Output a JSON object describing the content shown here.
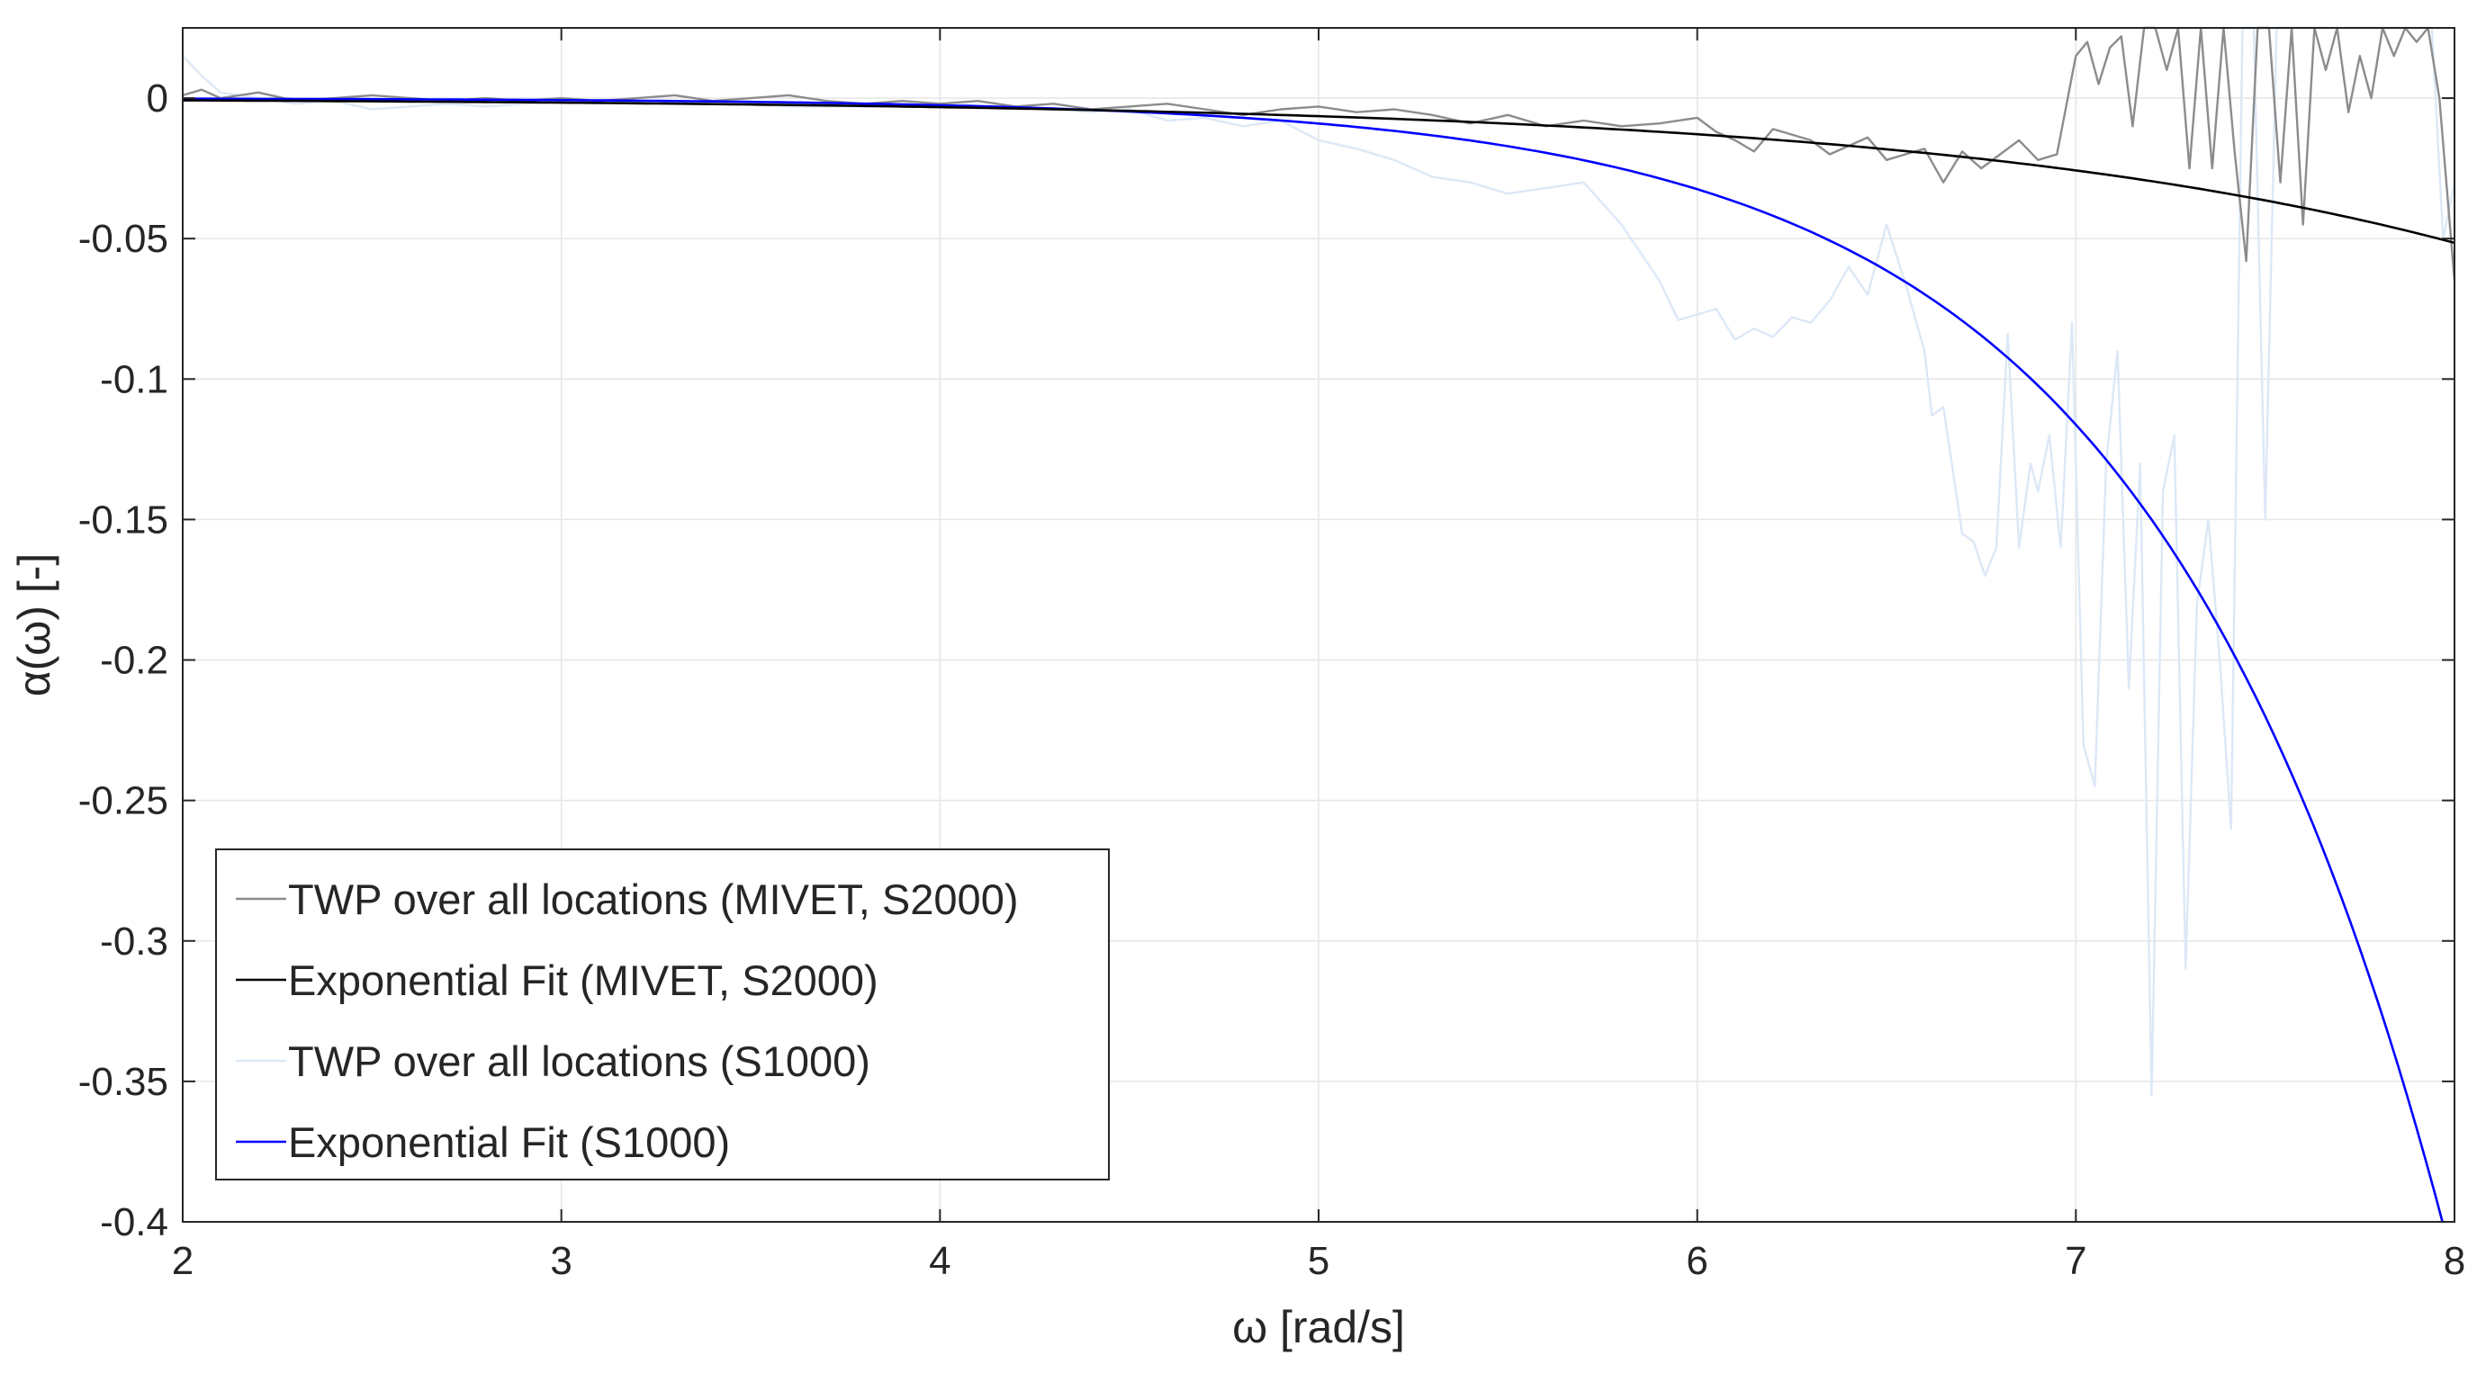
{
  "chart_data": {
    "type": "line",
    "title": "",
    "xlabel": "ω [rad/s]",
    "ylabel": "α(ω) [-]",
    "xlim": [
      2,
      8
    ],
    "ylim": [
      -0.4,
      0.025
    ],
    "grid": true,
    "legend_position": "lower-left",
    "x_ticks": [
      2,
      3,
      4,
      5,
      6,
      7,
      8
    ],
    "x_tick_labels": [
      "2",
      "3",
      "4",
      "5",
      "6",
      "7",
      "8"
    ],
    "y_ticks": [
      0,
      -0.05,
      -0.1,
      -0.15,
      -0.2,
      -0.25,
      -0.3,
      -0.35,
      -0.4
    ],
    "y_tick_labels": [
      "0",
      "-0.05",
      "-0.1",
      "-0.15",
      "-0.2",
      "-0.25",
      "-0.3",
      "-0.35",
      "-0.4"
    ],
    "series": [
      {
        "name": "TWP over all locations (MIVET, S2000)",
        "color": "#8c8c8c",
        "x": [
          2.0,
          2.05,
          2.1,
          2.15,
          2.2,
          2.3,
          2.4,
          2.5,
          2.6,
          2.7,
          2.8,
          2.9,
          3.0,
          3.1,
          3.2,
          3.3,
          3.4,
          3.5,
          3.6,
          3.7,
          3.8,
          3.9,
          4.0,
          4.1,
          4.2,
          4.3,
          4.4,
          4.5,
          4.6,
          4.7,
          4.8,
          4.9,
          5.0,
          5.1,
          5.2,
          5.3,
          5.4,
          5.5,
          5.6,
          5.7,
          5.8,
          5.9,
          6.0,
          6.05,
          6.1,
          6.15,
          6.2,
          6.25,
          6.3,
          6.35,
          6.4,
          6.45,
          6.5,
          6.55,
          6.6,
          6.65,
          6.7,
          6.75,
          6.8,
          6.85,
          6.9,
          6.95,
          7.0,
          7.03,
          7.06,
          7.09,
          7.12,
          7.15,
          7.18,
          7.21,
          7.24,
          7.27,
          7.3,
          7.33,
          7.36,
          7.39,
          7.42,
          7.45,
          7.48,
          7.51,
          7.54,
          7.57,
          7.6,
          7.63,
          7.66,
          7.69,
          7.72,
          7.75,
          7.78,
          7.81,
          7.84,
          7.87,
          7.9,
          7.93,
          7.96,
          8.0
        ],
        "values": [
          0.001,
          0.003,
          0.0,
          0.001,
          0.002,
          -0.001,
          0.0,
          0.001,
          0.0,
          -0.001,
          0.0,
          -0.001,
          0.0,
          -0.001,
          0.0,
          0.001,
          -0.001,
          0.0,
          0.001,
          -0.001,
          -0.002,
          -0.001,
          -0.002,
          -0.001,
          -0.003,
          -0.002,
          -0.004,
          -0.003,
          -0.002,
          -0.004,
          -0.006,
          -0.004,
          -0.003,
          -0.005,
          -0.004,
          -0.006,
          -0.009,
          -0.006,
          -0.01,
          -0.008,
          -0.01,
          -0.009,
          -0.007,
          -0.012,
          -0.015,
          -0.019,
          -0.011,
          -0.013,
          -0.015,
          -0.02,
          -0.017,
          -0.014,
          -0.022,
          -0.02,
          -0.018,
          -0.03,
          -0.019,
          -0.025,
          -0.02,
          -0.015,
          -0.022,
          -0.02,
          0.015,
          0.02,
          0.005,
          0.018,
          0.022,
          -0.01,
          0.025,
          0.025,
          0.01,
          0.025,
          -0.025,
          0.025,
          -0.025,
          0.025,
          -0.02,
          -0.058,
          0.025,
          0.025,
          -0.03,
          0.025,
          -0.045,
          0.025,
          0.01,
          0.025,
          -0.005,
          0.015,
          0.0,
          0.025,
          0.015,
          0.025,
          0.02,
          0.025,
          0.0,
          -0.065
        ]
      },
      {
        "name": "Exponential Fit (MIVET, S2000)",
        "color": "#000000",
        "fit": {
          "a": -0.0002,
          "b": 0.6939
        },
        "x": [
          2,
          2.5,
          3,
          3.5,
          4,
          4.5,
          5,
          5.5,
          6,
          6.5,
          7,
          7.5,
          8
        ],
        "values": [
          -0.0008,
          -0.0011,
          -0.0016,
          -0.0023,
          -0.0032,
          -0.0045,
          -0.0064,
          -0.009,
          -0.0128,
          -0.0181,
          -0.0256,
          -0.0362,
          -0.0512
        ]
      },
      {
        "name": "TWP over all locations (S1000)",
        "color": "#dce8f6",
        "x": [
          2.0,
          2.05,
          2.1,
          2.2,
          2.3,
          2.4,
          2.5,
          2.6,
          2.7,
          2.8,
          3.0,
          3.2,
          3.4,
          3.6,
          3.8,
          4.0,
          4.2,
          4.4,
          4.5,
          4.6,
          4.7,
          4.8,
          4.9,
          5.0,
          5.1,
          5.2,
          5.3,
          5.4,
          5.5,
          5.6,
          5.7,
          5.8,
          5.85,
          5.9,
          5.95,
          6.0,
          6.05,
          6.1,
          6.15,
          6.2,
          6.25,
          6.3,
          6.35,
          6.4,
          6.45,
          6.5,
          6.55,
          6.6,
          6.62,
          6.65,
          6.7,
          6.73,
          6.76,
          6.79,
          6.82,
          6.85,
          6.88,
          6.9,
          6.93,
          6.96,
          6.99,
          7.02,
          7.05,
          7.08,
          7.11,
          7.14,
          7.17,
          7.2,
          7.23,
          7.26,
          7.29,
          7.32,
          7.35,
          7.38,
          7.41,
          7.44,
          7.47,
          7.5,
          7.53,
          7.56,
          7.6,
          7.65,
          7.7,
          7.75,
          7.8,
          7.85,
          7.9,
          7.94,
          7.97,
          8.0
        ],
        "values": [
          0.015,
          0.008,
          0.002,
          0.0,
          -0.002,
          -0.001,
          -0.004,
          -0.003,
          -0.002,
          -0.003,
          -0.001,
          -0.002,
          -0.002,
          -0.003,
          -0.003,
          -0.002,
          -0.003,
          -0.005,
          -0.004,
          -0.008,
          -0.007,
          -0.01,
          -0.008,
          -0.015,
          -0.018,
          -0.022,
          -0.028,
          -0.03,
          -0.034,
          -0.032,
          -0.03,
          -0.045,
          -0.055,
          -0.065,
          -0.079,
          -0.077,
          -0.075,
          -0.086,
          -0.082,
          -0.085,
          -0.078,
          -0.08,
          -0.072,
          -0.06,
          -0.07,
          -0.045,
          -0.066,
          -0.09,
          -0.113,
          -0.11,
          -0.155,
          -0.158,
          -0.17,
          -0.16,
          -0.084,
          -0.16,
          -0.13,
          -0.14,
          -0.12,
          -0.16,
          -0.08,
          -0.23,
          -0.245,
          -0.13,
          -0.09,
          -0.21,
          -0.13,
          -0.355,
          -0.14,
          -0.12,
          -0.31,
          -0.18,
          -0.15,
          -0.2,
          -0.26,
          0.025,
          0.025,
          -0.15,
          0.025,
          0.025,
          0.025,
          0.025,
          0.025,
          0.025,
          0.025,
          0.025,
          0.025,
          0.025,
          -0.05,
          -0.03
        ]
      },
      {
        "name": "Exponential Fit (S1000)",
        "color": "#0000ff",
        "fit": {
          "a": -1.53e-05,
          "b": 1.2765
        },
        "x": [
          2,
          2.5,
          3,
          3.5,
          4,
          4.5,
          5,
          5.5,
          6,
          6.5,
          7,
          7.5,
          8
        ],
        "values": [
          -0.0002,
          -0.0004,
          -0.0007,
          -0.0013,
          -0.0025,
          -0.0048,
          -0.0091,
          -0.0172,
          -0.0325,
          -0.0617,
          -0.1168,
          -0.2212,
          -0.4189
        ]
      }
    ]
  }
}
